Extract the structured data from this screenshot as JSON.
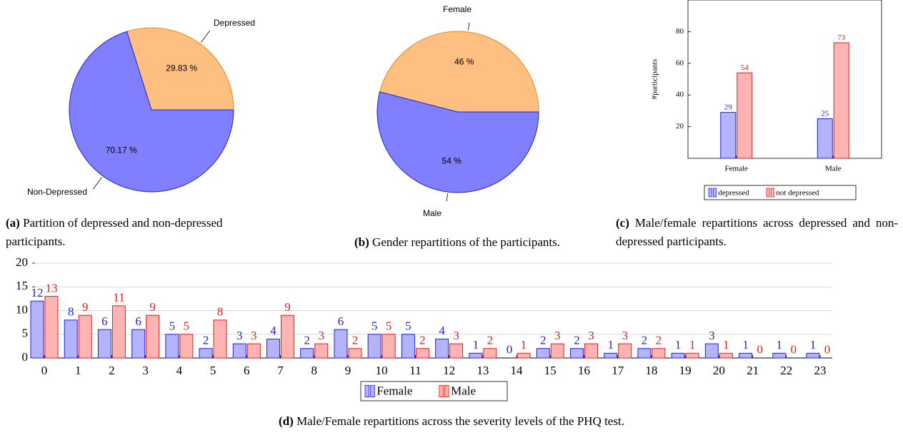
{
  "chart_data": [
    {
      "type": "pie",
      "caption_label": "(a)",
      "caption": "Partition of depressed and non-depressed participants.",
      "categories": [
        "Depressed",
        "Non-Depressed"
      ],
      "values": [
        29.83,
        70.17
      ],
      "value_labels": [
        "29.83 %",
        "70.17 %"
      ],
      "colors": [
        "#ffbf80",
        "#8080ff"
      ],
      "edge_colors": [
        "#e08a1e",
        "#2020d0"
      ]
    },
    {
      "type": "pie",
      "caption_label": "(b)",
      "caption": "Gender repartitions of the participants.",
      "categories": [
        "Female",
        "Male"
      ],
      "values": [
        46,
        54
      ],
      "value_labels": [
        "46 %",
        "54 %"
      ],
      "colors": [
        "#ffbf80",
        "#8080ff"
      ],
      "edge_colors": [
        "#e08a1e",
        "#2020d0"
      ]
    },
    {
      "type": "bar",
      "caption_label": "(c)",
      "caption": "Male/female repartitions across depressed and non-depressed participants.",
      "ylabel": "#participants",
      "categories": [
        "Female",
        "Male"
      ],
      "series": [
        {
          "name": "depressed",
          "color": "#b3b3ff",
          "edge": "#2020e0",
          "values": [
            29,
            25
          ]
        },
        {
          "name": "not depressed",
          "color": "#ffb3b3",
          "edge": "#e02020",
          "values": [
            54,
            73
          ]
        }
      ],
      "ylim": [
        0,
        100
      ],
      "yticks": [
        20,
        40,
        60,
        80
      ]
    },
    {
      "type": "bar",
      "caption_label": "(d)",
      "caption": "Male/Female repartitions across the severity levels of the PHQ test.",
      "categories": [
        "0",
        "1",
        "2",
        "3",
        "4",
        "5",
        "6",
        "7",
        "8",
        "9",
        "10",
        "11",
        "12",
        "13",
        "14",
        "15",
        "16",
        "17",
        "18",
        "19",
        "20",
        "21",
        "22",
        "23"
      ],
      "series": [
        {
          "name": "Female",
          "color": "#b3b3ff",
          "edge": "#2020e0",
          "values": [
            12,
            8,
            6,
            6,
            5,
            2,
            3,
            4,
            2,
            6,
            5,
            5,
            4,
            1,
            0,
            2,
            2,
            1,
            2,
            1,
            3,
            1,
            1,
            1
          ]
        },
        {
          "name": "Male",
          "color": "#ffb3b3",
          "edge": "#e02020",
          "values": [
            13,
            9,
            11,
            9,
            5,
            8,
            3,
            9,
            3,
            2,
            5,
            2,
            3,
            2,
            1,
            3,
            3,
            3,
            2,
            1,
            1,
            0,
            0,
            0
          ]
        }
      ],
      "ylim": [
        0,
        20
      ],
      "yticks": [
        0,
        5,
        10,
        15,
        20
      ],
      "grid": true
    }
  ]
}
